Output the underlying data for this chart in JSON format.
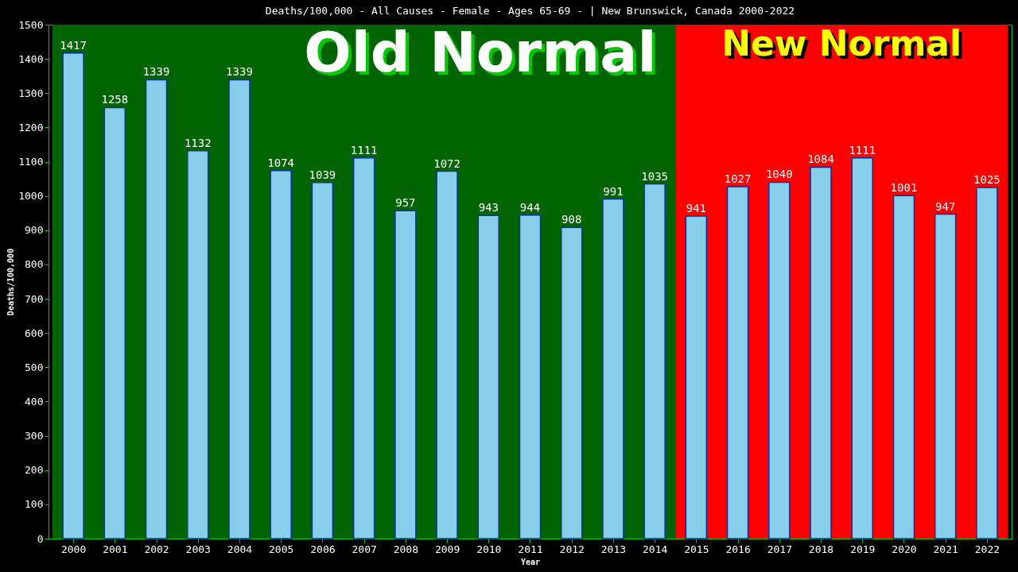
{
  "chart_data": {
    "type": "bar",
    "title": "Deaths/100,000 - All Causes - Female - Ages 65-69 -  | New Brunswick, Canada 2000-2022",
    "xlabel": "Year",
    "ylabel": "Deaths/100,000",
    "categories": [
      "2000",
      "2001",
      "2002",
      "2003",
      "2004",
      "2005",
      "2006",
      "2007",
      "2008",
      "2009",
      "2010",
      "2011",
      "2012",
      "2013",
      "2014",
      "2015",
      "2016",
      "2017",
      "2018",
      "2019",
      "2020",
      "2021",
      "2022"
    ],
    "values": [
      1417,
      1258,
      1339,
      1132,
      1339,
      1074,
      1039,
      1111,
      957,
      1072,
      943,
      944,
      908,
      991,
      1035,
      941,
      1027,
      1040,
      1084,
      1111,
      1001,
      947,
      1025
    ],
    "color": "#87ceeb",
    "ylim": [
      0,
      1500
    ],
    "yticks": [
      0,
      100,
      200,
      300,
      400,
      500,
      600,
      700,
      800,
      900,
      1000,
      1100,
      1200,
      1300,
      1400,
      1500
    ],
    "grid": false,
    "data_labels": true,
    "bands": [
      {
        "axis": "x",
        "from": "2000",
        "to": "2014",
        "label": "Old Normal",
        "color": "#006400"
      },
      {
        "axis": "x",
        "from": "2015",
        "to": "2022",
        "label": "New Normal",
        "color": "#ff0000"
      }
    ]
  }
}
